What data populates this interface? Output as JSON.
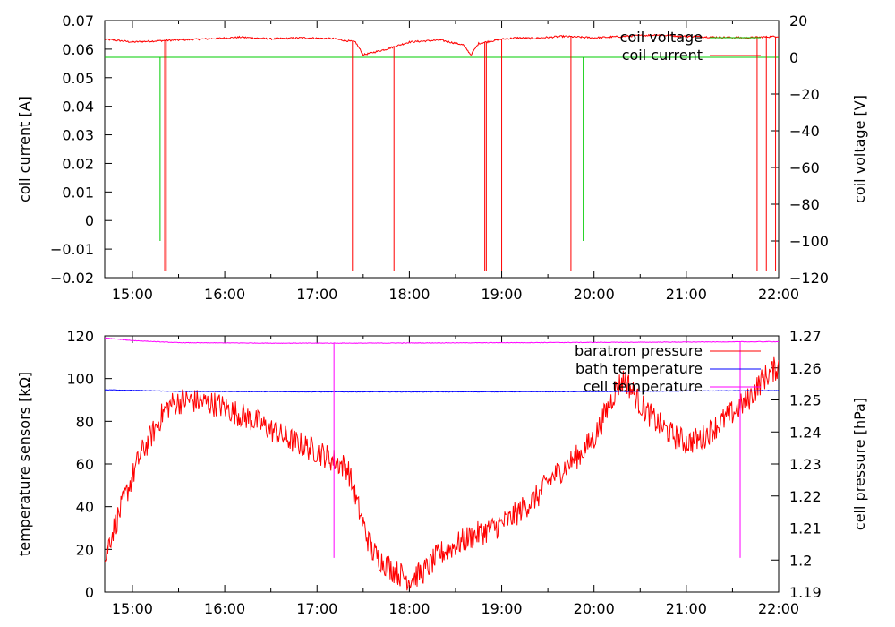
{
  "chart_data": [
    {
      "type": "line",
      "x_ticks": [
        "15:00",
        "16:00",
        "17:00",
        "18:00",
        "19:00",
        "20:00",
        "21:00",
        "22:00"
      ],
      "xlim": [
        "14:42",
        "22:00"
      ],
      "ylabel": "coil current [A]",
      "ylim": [
        -0.02,
        0.07
      ],
      "y_ticks": [
        "−0.02",
        "−0.01",
        "0",
        "0.01",
        "0.02",
        "0.03",
        "0.04",
        "0.05",
        "0.06",
        "0.07"
      ],
      "y2label": "coil voltage [V]",
      "y2lim": [
        -120,
        20
      ],
      "y2_ticks": [
        "−120",
        "−100",
        "−80",
        "−60",
        "−40",
        "−20",
        "0",
        "20"
      ],
      "legend_position": "top-right",
      "series": [
        {
          "name": "coil voltage",
          "axis": "right",
          "color": "#00cc00",
          "baseline": 0,
          "x": [
            "14:42",
            "22:00"
          ],
          "y": [
            0,
            0
          ],
          "dips": [
            {
              "x": "15:18",
              "y": -100
            },
            {
              "x": "19:53",
              "y": -100
            }
          ]
        },
        {
          "name": "coil current",
          "axis": "left",
          "color": "#ff0000",
          "x": [
            "14:42",
            "15:00",
            "15:20",
            "15:45",
            "16:10",
            "16:30",
            "16:50",
            "17:10",
            "17:25",
            "17:30",
            "17:45",
            "18:00",
            "18:20",
            "18:35",
            "18:40",
            "18:45",
            "19:00",
            "19:10",
            "19:20",
            "19:40",
            "20:00",
            "20:20",
            "20:40",
            "21:00",
            "21:20",
            "21:40",
            "22:00"
          ],
          "y": [
            0.0635,
            0.0625,
            0.063,
            0.0635,
            0.0642,
            0.0636,
            0.064,
            0.0637,
            0.0625,
            0.058,
            0.06,
            0.0625,
            0.0632,
            0.0615,
            0.058,
            0.062,
            0.0635,
            0.064,
            0.0638,
            0.0645,
            0.064,
            0.0645,
            0.065,
            0.0645,
            0.0642,
            0.064,
            0.0645
          ],
          "dips": [
            {
              "x": "15:21",
              "y": -0.0175
            },
            {
              "x": "15:22",
              "y": -0.0175
            },
            {
              "x": "17:23",
              "y": -0.0175
            },
            {
              "x": "17:50",
              "y": -0.0175
            },
            {
              "x": "18:49",
              "y": -0.0175
            },
            {
              "x": "18:50",
              "y": -0.0175
            },
            {
              "x": "19:00",
              "y": -0.0175
            },
            {
              "x": "19:45",
              "y": -0.0175
            },
            {
              "x": "21:46",
              "y": -0.0175
            },
            {
              "x": "21:52",
              "y": -0.0175
            },
            {
              "x": "21:58",
              "y": -0.0175
            }
          ]
        }
      ]
    },
    {
      "type": "line",
      "x_ticks": [
        "15:00",
        "16:00",
        "17:00",
        "18:00",
        "19:00",
        "20:00",
        "21:00",
        "22:00"
      ],
      "xlim": [
        "14:42",
        "22:00"
      ],
      "ylabel": "temperature sensors [kΩ]",
      "ylim": [
        0,
        120
      ],
      "y_ticks": [
        "0",
        "20",
        "40",
        "60",
        "80",
        "100",
        "120"
      ],
      "y2label": "cell pressure [hPa]",
      "y2lim": [
        1.19,
        1.27
      ],
      "y2_ticks": [
        "1.19",
        "1.2",
        "1.21",
        "1.22",
        "1.23",
        "1.24",
        "1.25",
        "1.26",
        "1.27"
      ],
      "legend_position": "top-right",
      "series": [
        {
          "name": "baratron pressure",
          "axis": "left",
          "color": "#ff0000",
          "x": [
            "14:42",
            "14:45",
            "14:50",
            "14:55",
            "15:00",
            "15:05",
            "15:10",
            "15:15",
            "15:20",
            "15:25",
            "15:35",
            "15:55",
            "16:20",
            "16:40",
            "17:00",
            "17:10",
            "17:20",
            "17:25",
            "17:30",
            "17:35",
            "17:40",
            "17:50",
            "18:00",
            "18:10",
            "18:20",
            "18:30",
            "18:40",
            "18:55",
            "19:05",
            "19:15",
            "19:25",
            "19:30",
            "19:40",
            "19:50",
            "20:00",
            "20:05",
            "20:10",
            "20:15",
            "20:20",
            "20:30",
            "20:40",
            "20:50",
            "21:00",
            "21:10",
            "21:20",
            "21:30",
            "21:40",
            "21:50",
            "22:00"
          ],
          "y": [
            14,
            24,
            34,
            44,
            54,
            64,
            70,
            77,
            84,
            88,
            90,
            88,
            80,
            72,
            66,
            62,
            58,
            44,
            32,
            20,
            16,
            10,
            6,
            10,
            18,
            22,
            26,
            30,
            34,
            40,
            46,
            52,
            58,
            64,
            72,
            80,
            88,
            96,
            100,
            88,
            80,
            74,
            70,
            72,
            78,
            84,
            90,
            100,
            106
          ],
          "noise": 6
        },
        {
          "name": "bath temperature",
          "axis": "left",
          "color": "#0000ff",
          "x": [
            "14:42",
            "15:30",
            "17:00",
            "18:30",
            "20:00",
            "21:00",
            "22:00"
          ],
          "y": [
            94.8,
            94.0,
            93.8,
            93.8,
            93.9,
            94.2,
            94.4
          ]
        },
        {
          "name": "cell temperature",
          "axis": "left",
          "color": "#ff00ff",
          "x": [
            "14:42",
            "15:00",
            "15:30",
            "16:30",
            "17:30",
            "19:00",
            "20:30",
            "21:30",
            "22:00"
          ],
          "y": [
            119,
            117.8,
            116.8,
            116.6,
            116.6,
            116.8,
            117.0,
            117.2,
            117.3
          ],
          "dips": [
            {
              "x": "17:11",
              "y": 16
            },
            {
              "x": "21:35",
              "y": 16
            }
          ]
        }
      ]
    }
  ]
}
